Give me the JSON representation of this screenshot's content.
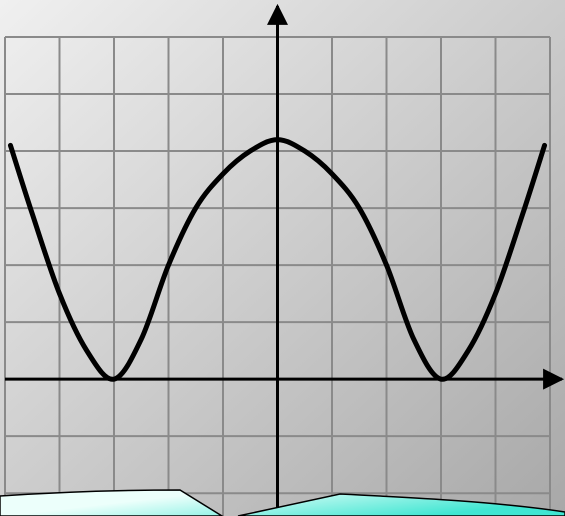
{
  "chart_data": {
    "type": "line",
    "title": "",
    "xlabel": "",
    "ylabel": "",
    "xlim": [
      -5,
      5
    ],
    "ylim": [
      -2.4,
      6
    ],
    "grid": true,
    "tick_labels": false,
    "series": [
      {
        "x": [
          -4.9,
          -4.5,
          -4.0,
          -3.5,
          -3.0,
          -2.5,
          -2.0,
          -1.5,
          -1.0,
          -0.5,
          0.0,
          0.5,
          1.0,
          1.5,
          2.0,
          2.5,
          3.0,
          3.5,
          4.0,
          4.5,
          4.9
        ],
        "y": [
          4.1,
          2.9,
          1.5,
          0.5,
          0.0,
          0.7,
          2.0,
          3.0,
          3.6,
          4.0,
          4.2,
          4.0,
          3.6,
          3.0,
          2.0,
          0.7,
          0.0,
          0.5,
          1.5,
          2.9,
          4.1
        ],
        "color": "#000000"
      }
    ]
  },
  "colors": {
    "background_light": "#f0f0f0",
    "background_dark": "#a8a8a8",
    "grid": "#8a8a8a",
    "axis": "#000000",
    "banner_light": "#ecfffb",
    "banner_accent": "#40e6d2"
  }
}
